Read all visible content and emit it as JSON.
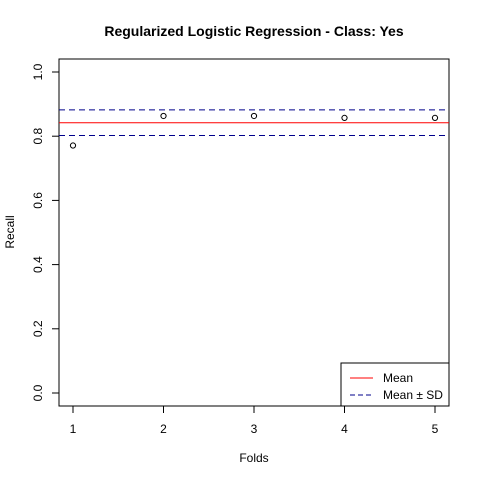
{
  "chart_data": {
    "type": "scatter",
    "title": "Regularized Logistic Regression - Class: Yes",
    "xlabel": "Folds",
    "ylabel": "Recall",
    "xlim": [
      1,
      5
    ],
    "ylim": [
      0,
      1
    ],
    "x_ticks": [
      "1",
      "2",
      "3",
      "4",
      "5"
    ],
    "y_ticks": [
      "0.0",
      "0.2",
      "0.4",
      "0.6",
      "0.8",
      "1.0"
    ],
    "grid": false,
    "points": [
      {
        "x": 1,
        "y": 0.771
      },
      {
        "x": 2,
        "y": 0.863
      },
      {
        "x": 3,
        "y": 0.863
      },
      {
        "x": 4,
        "y": 0.857
      },
      {
        "x": 5,
        "y": 0.857
      }
    ],
    "mean": 0.842,
    "sd": 0.04,
    "legend": {
      "placement": "bottom-right",
      "entries": [
        {
          "label": "Mean",
          "color": "#ff0000",
          "style": "solid"
        },
        {
          "label": "Mean ± SD",
          "color": "#00008b",
          "style": "dashed"
        }
      ]
    }
  }
}
